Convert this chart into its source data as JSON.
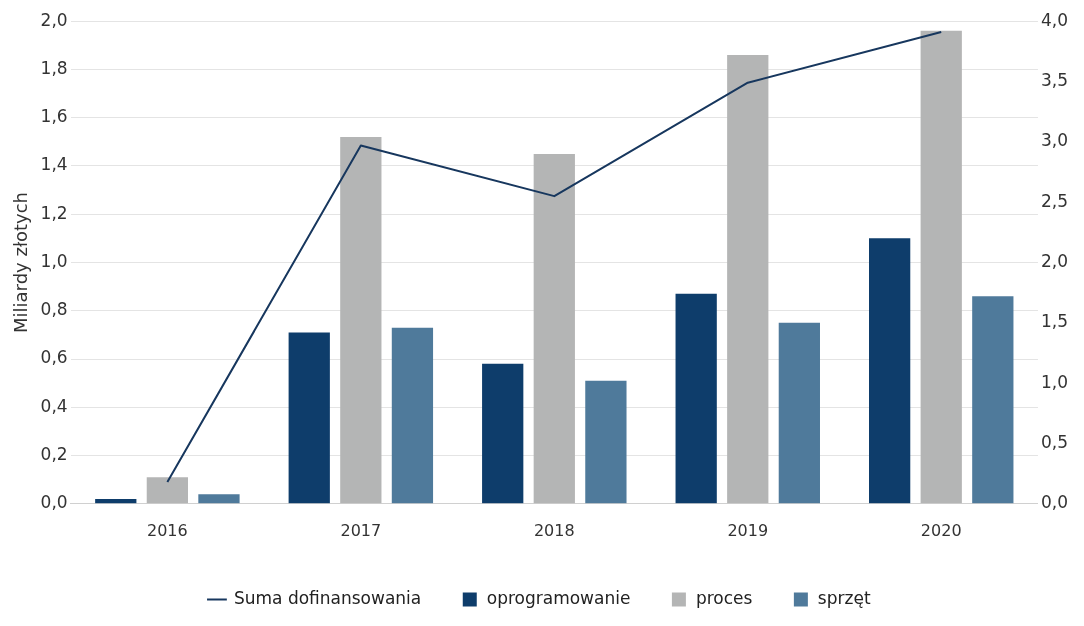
{
  "chart_data": {
    "type": "bar",
    "ylabel": "Miliardy złotych",
    "categories": [
      "2016",
      "2017",
      "2018",
      "2019",
      "2020"
    ],
    "series": [
      {
        "name": "oprogramowanie",
        "color": "#0e3d6b",
        "values": [
          0.02,
          0.71,
          0.58,
          0.87,
          1.1
        ]
      },
      {
        "name": "proces",
        "color": "#b4b5b5",
        "values": [
          0.11,
          1.52,
          1.45,
          1.86,
          1.96
        ]
      },
      {
        "name": "sprzęt",
        "color": "#4f7a9b",
        "values": [
          0.04,
          0.73,
          0.51,
          0.75,
          0.86
        ]
      },
      {
        "name": "Suma dofinansowania",
        "type": "line",
        "axis": "y2",
        "color": "#17375e",
        "marker": "none",
        "values": [
          0.18,
          2.97,
          2.55,
          3.49,
          3.91
        ]
      }
    ],
    "ylim": [
      0,
      2
    ],
    "yticks": [
      {
        "value": 0,
        "label": "0,0"
      },
      {
        "value": 0.2,
        "label": "0,2"
      },
      {
        "value": 0.4,
        "label": "0,4"
      },
      {
        "value": 0.6,
        "label": "0,6"
      },
      {
        "value": 0.8,
        "label": "0,8"
      },
      {
        "value": 1,
        "label": "1,0"
      },
      {
        "value": 1.2,
        "label": "1,2"
      },
      {
        "value": 1.4,
        "label": "1,4"
      },
      {
        "value": 1.6,
        "label": "1,6"
      },
      {
        "value": 1.8,
        "label": "1,8"
      },
      {
        "value": 2,
        "label": "2,0"
      }
    ],
    "y2lim": [
      0,
      4
    ],
    "y2ticks": [
      {
        "value": 0,
        "label": "0,0"
      },
      {
        "value": 0.5,
        "label": "0,5"
      },
      {
        "value": 1,
        "label": "1,0"
      },
      {
        "value": 1.5,
        "label": "1,5"
      },
      {
        "value": 2,
        "label": "2,0"
      },
      {
        "value": 2.5,
        "label": "2,5"
      },
      {
        "value": 3,
        "label": "3,0"
      },
      {
        "value": 3.5,
        "label": "3,5"
      },
      {
        "value": 4,
        "label": "4,0"
      }
    ],
    "grid": "y",
    "legend": "bottom"
  }
}
